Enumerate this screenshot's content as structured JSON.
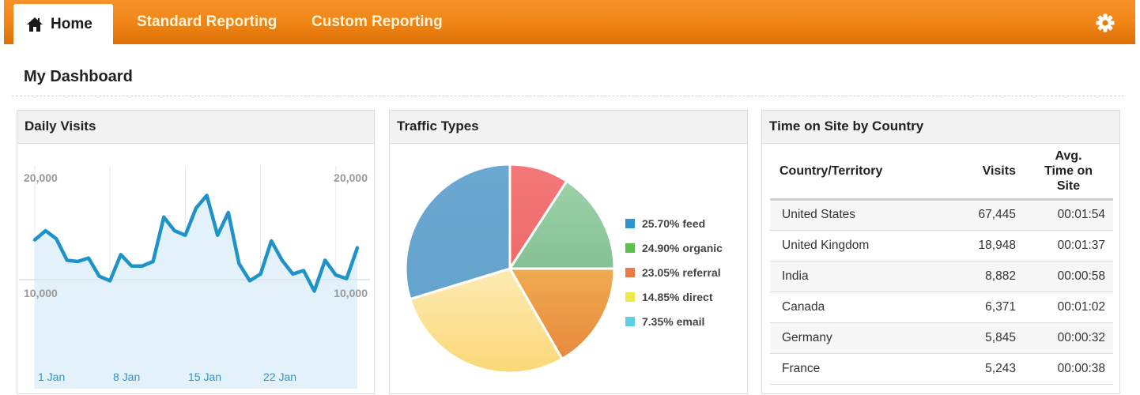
{
  "nav": {
    "tabs": [
      {
        "label": "Home",
        "icon": "home-icon",
        "active": true
      },
      {
        "label": "Standard Reporting",
        "active": false
      },
      {
        "label": "Custom Reporting",
        "active": false
      }
    ],
    "settings_icon": "gear-icon",
    "accent_color": "#ef8414"
  },
  "page": {
    "title": "My Dashboard"
  },
  "panels": {
    "daily_visits": {
      "title": "Daily Visits"
    },
    "traffic_types": {
      "title": "Traffic Types"
    },
    "time_on_site": {
      "title": "Time on Site by Country"
    }
  },
  "chart_data": [
    {
      "type": "area",
      "title": "Daily Visits",
      "xlabel": "",
      "ylabel": "",
      "x_tick_labels": [
        "1 Jan",
        "8 Jan",
        "15 Jan",
        "22 Jan"
      ],
      "y_tick_labels_left": [
        "20,000",
        "10,000"
      ],
      "y_tick_labels_right": [
        "20,000",
        "10,000"
      ],
      "ylim": [
        0,
        20000
      ],
      "grid": true,
      "color": "#1f93c8",
      "fill_color": "#e3f2fa",
      "x": [
        "1 Jan",
        "2 Jan",
        "3 Jan",
        "4 Jan",
        "5 Jan",
        "6 Jan",
        "7 Jan",
        "8 Jan",
        "9 Jan",
        "10 Jan",
        "11 Jan",
        "12 Jan",
        "13 Jan",
        "14 Jan",
        "15 Jan",
        "16 Jan",
        "17 Jan",
        "18 Jan",
        "19 Jan",
        "20 Jan",
        "21 Jan",
        "22 Jan",
        "23 Jan",
        "24 Jan",
        "25 Jan",
        "26 Jan",
        "27 Jan",
        "28 Jan",
        "29 Jan",
        "30 Jan",
        "31 Jan"
      ],
      "values": [
        13500,
        14300,
        13600,
        11700,
        11600,
        11900,
        10300,
        9900,
        12200,
        11200,
        11200,
        11600,
        15500,
        14300,
        13900,
        16300,
        17400,
        13900,
        15900,
        11400,
        9900,
        10500,
        13400,
        11700,
        10500,
        10800,
        9000,
        11700,
        10400,
        10100,
        12800
      ]
    },
    {
      "type": "pie",
      "title": "Traffic Types",
      "legend_position": "right",
      "slices": [
        {
          "label": "feed",
          "legend": "25.70% feed",
          "value": 25.7,
          "legend_color": "#2e96cf",
          "slice_color": "#6aa7cf"
        },
        {
          "label": "organic",
          "legend": "24.90% organic",
          "value": 24.9,
          "legend_color": "#5fbf4a",
          "slice_color": "#8ec99c"
        },
        {
          "label": "referral",
          "legend": "23.05% referral",
          "value": 23.05,
          "legend_color": "#ee7a4a",
          "slice_color": "#eca04a"
        },
        {
          "label": "direct",
          "legend": "14.85% direct",
          "value": 14.85,
          "legend_color": "#ecea48",
          "slice_color": "#fbe08f"
        },
        {
          "label": "email",
          "legend": "7.35% email",
          "value": 7.35,
          "legend_color": "#5fcfe6",
          "slice_color": "#f27474"
        }
      ]
    },
    {
      "type": "table",
      "title": "Time on Site by Country",
      "columns": [
        "Country/Territory",
        "Visits",
        "Avg. Time on Site"
      ],
      "rows": [
        [
          "United States",
          "67,445",
          "00:01:54"
        ],
        [
          "United Kingdom",
          "18,948",
          "00:01:37"
        ],
        [
          "India",
          "8,882",
          "00:00:58"
        ],
        [
          "Canada",
          "6,371",
          "00:01:02"
        ],
        [
          "Germany",
          "5,845",
          "00:00:32"
        ],
        [
          "France",
          "5,243",
          "00:00:38"
        ]
      ]
    }
  ],
  "table": {
    "headers": {
      "country": "Country/Territory",
      "visits": "Visits",
      "avg_line1": "Avg.",
      "avg_line2": "Time on",
      "avg_line3": "Site"
    },
    "rows": [
      {
        "country": "United States",
        "visits": "67,445",
        "avg": "00:01:54"
      },
      {
        "country": "United Kingdom",
        "visits": "18,948",
        "avg": "00:01:37"
      },
      {
        "country": "India",
        "visits": "8,882",
        "avg": "00:00:58"
      },
      {
        "country": "Canada",
        "visits": "6,371",
        "avg": "00:01:02"
      },
      {
        "country": "Germany",
        "visits": "5,845",
        "avg": "00:00:32"
      },
      {
        "country": "France",
        "visits": "5,243",
        "avg": "00:00:38"
      }
    ]
  }
}
